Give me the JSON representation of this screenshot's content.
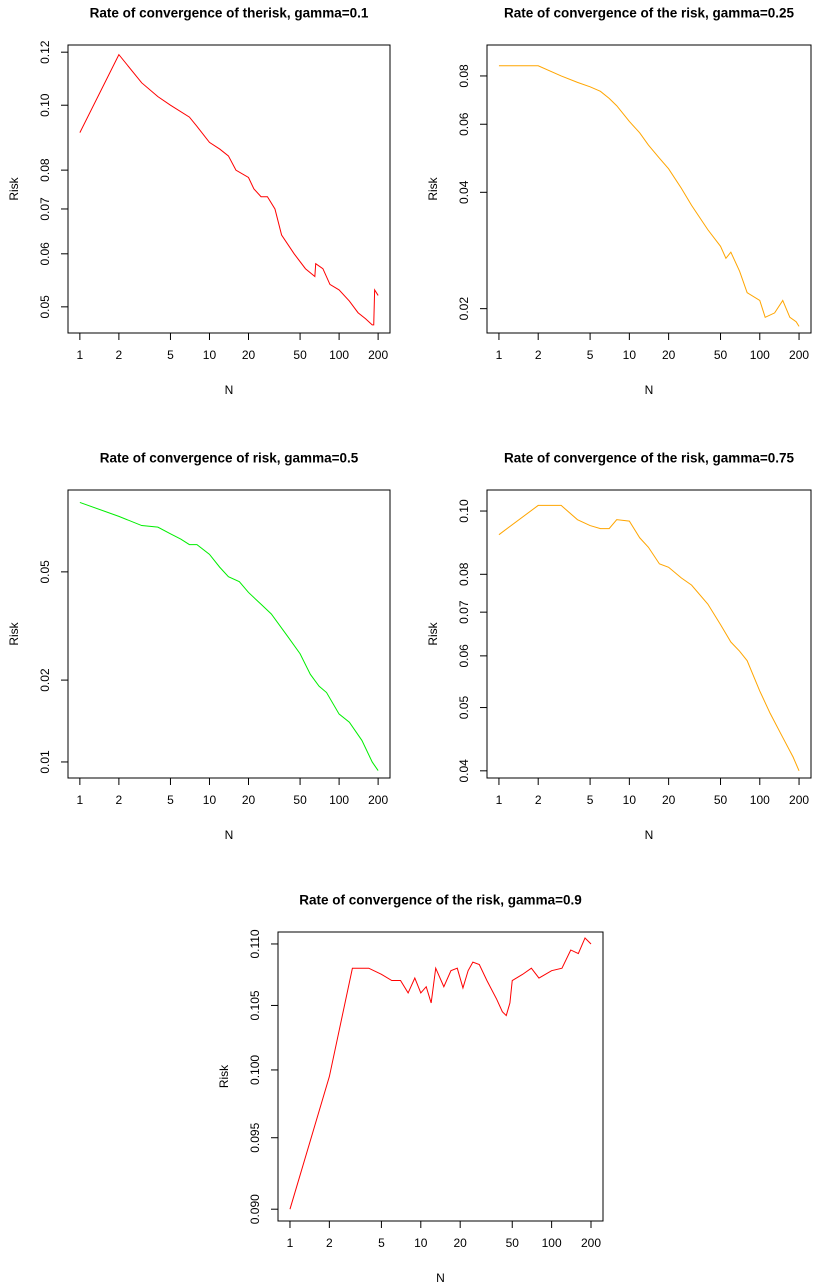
{
  "chart_data": [
    {
      "type": "line",
      "title": "Rate of convergence of therisk, gamma=0.1",
      "xlabel": "N",
      "ylabel": "Risk",
      "color": "#ff0000",
      "xlog": true,
      "ylog": true,
      "x": [
        1,
        2,
        3,
        4,
        5,
        7,
        8,
        10,
        12,
        14,
        16,
        20,
        22,
        25,
        28,
        32,
        36,
        45,
        55,
        65,
        66,
        75,
        85,
        100,
        120,
        140,
        160,
        180,
        185,
        188,
        200
      ],
      "values": [
        0.091,
        0.119,
        0.108,
        0.103,
        0.1,
        0.096,
        0.093,
        0.088,
        0.086,
        0.084,
        0.08,
        0.078,
        0.075,
        0.073,
        0.073,
        0.07,
        0.064,
        0.06,
        0.057,
        0.0555,
        0.058,
        0.057,
        0.054,
        0.053,
        0.051,
        0.049,
        0.048,
        0.047,
        0.047,
        0.053,
        0.052
      ],
      "xlim": [
        0.81,
        247
      ],
      "ylim": [
        0.0457,
        0.123
      ],
      "xticks": [
        1,
        2,
        5,
        10,
        20,
        50,
        100,
        200
      ],
      "yticks": [
        0.05,
        0.06,
        0.07,
        0.08,
        {
          "value": 0.1,
          "label": "0.10"
        },
        0.12
      ]
    },
    {
      "type": "line",
      "title": "Rate of convergence of the risk, gamma=0.25",
      "xlabel": "N",
      "ylabel": "Risk",
      "color": "#ffa500",
      "xlog": true,
      "ylog": true,
      "x": [
        1,
        2,
        3,
        4,
        5,
        6,
        7,
        8,
        10,
        12,
        14,
        17,
        20,
        25,
        30,
        40,
        50,
        55,
        60,
        70,
        80,
        100,
        110,
        130,
        150,
        170,
        190,
        200
      ],
      "values": [
        0.085,
        0.085,
        0.08,
        0.077,
        0.075,
        0.073,
        0.07,
        0.067,
        0.061,
        0.057,
        0.053,
        0.049,
        0.046,
        0.041,
        0.037,
        0.032,
        0.029,
        0.027,
        0.028,
        0.025,
        0.022,
        0.021,
        0.019,
        0.0195,
        0.021,
        0.019,
        0.0185,
        0.018
      ],
      "xlim": [
        0.81,
        247
      ],
      "ylim": [
        0.0173,
        0.0962
      ],
      "xticks": [
        1,
        2,
        5,
        10,
        20,
        50,
        100,
        200
      ],
      "yticks": [
        0.02,
        0.04,
        0.06,
        0.08
      ]
    },
    {
      "type": "line",
      "title": "Rate of convergence of risk, gamma=0.5",
      "xlabel": "N",
      "ylabel": "Risk",
      "color": "#00ee00",
      "xlog": true,
      "ylog": true,
      "x": [
        1,
        2,
        3,
        4,
        5,
        6,
        7,
        8,
        10,
        12,
        14,
        17,
        20,
        25,
        30,
        40,
        50,
        60,
        70,
        80,
        100,
        120,
        150,
        180,
        200
      ],
      "values": [
        0.09,
        0.08,
        0.074,
        0.073,
        0.069,
        0.066,
        0.063,
        0.063,
        0.058,
        0.052,
        0.048,
        0.046,
        0.042,
        0.038,
        0.035,
        0.029,
        0.025,
        0.021,
        0.019,
        0.018,
        0.015,
        0.014,
        0.012,
        0.01,
        0.0093
      ],
      "xlim": [
        0.81,
        247
      ],
      "ylim": [
        0.00873,
        0.1
      ],
      "xticks": [
        1,
        2,
        5,
        10,
        20,
        50,
        100,
        200
      ],
      "yticks": [
        0.01,
        0.02,
        0.05
      ]
    },
    {
      "type": "line",
      "title": "Rate of convergence of the risk, gamma=0.75",
      "xlabel": "N",
      "ylabel": "Risk",
      "color": "#ffa500",
      "xlog": true,
      "ylog": true,
      "x": [
        1,
        2,
        3,
        4,
        5,
        6,
        7,
        8,
        10,
        12,
        14,
        17,
        20,
        25,
        30,
        40,
        50,
        60,
        70,
        80,
        100,
        120,
        150,
        180,
        200
      ],
      "values": [
        0.092,
        0.102,
        0.102,
        0.097,
        0.095,
        0.094,
        0.094,
        0.097,
        0.0965,
        0.091,
        0.088,
        0.083,
        0.082,
        0.079,
        0.077,
        0.072,
        0.067,
        0.063,
        0.061,
        0.059,
        0.053,
        0.049,
        0.045,
        0.042,
        0.04
      ],
      "xlim": [
        0.81,
        247
      ],
      "ylim": [
        0.039,
        0.1077
      ],
      "xticks": [
        1,
        2,
        5,
        10,
        20,
        50,
        100,
        200
      ],
      "yticks": [
        0.04,
        0.05,
        0.06,
        0.07,
        0.08,
        {
          "value": 0.1,
          "label": "0.10"
        }
      ]
    },
    {
      "type": "line",
      "title": "Rate of convergence of the risk, gamma=0.9",
      "xlabel": "N",
      "ylabel": "Risk",
      "color": "#ff0000",
      "xlog": true,
      "ylog": true,
      "x": [
        1,
        2,
        3,
        4,
        5,
        6,
        7,
        8,
        9,
        10,
        11,
        12,
        13,
        15,
        17,
        19,
        21,
        23,
        25,
        28,
        32,
        38,
        42,
        45,
        48,
        50,
        60,
        70,
        80,
        100,
        120,
        140,
        160,
        180,
        200
      ],
      "values": [
        0.09,
        0.0995,
        0.108,
        0.108,
        0.1075,
        0.107,
        0.107,
        0.106,
        0.1072,
        0.106,
        0.1065,
        0.1052,
        0.108,
        0.1065,
        0.1078,
        0.108,
        0.1064,
        0.1078,
        0.1085,
        0.1083,
        0.107,
        0.1055,
        0.1045,
        0.1042,
        0.1052,
        0.107,
        0.1075,
        0.108,
        0.1072,
        0.1078,
        0.108,
        0.1095,
        0.1092,
        0.1105,
        0.11
      ],
      "xlim": [
        0.81,
        247
      ],
      "ylim": [
        0.0892,
        0.111
      ],
      "xticks": [
        1,
        2,
        5,
        10,
        20,
        50,
        100,
        200
      ],
      "yticks": [
        {
          "value": 0.09,
          "label": "0.090"
        },
        0.095,
        {
          "value": 0.1,
          "label": "0.100"
        },
        0.105,
        {
          "value": 0.11,
          "label": "0.110"
        }
      ]
    }
  ]
}
